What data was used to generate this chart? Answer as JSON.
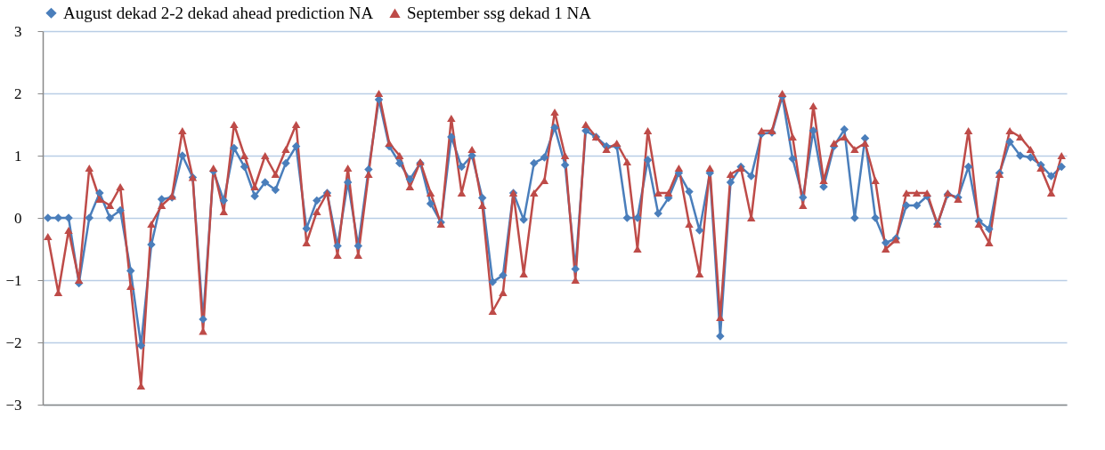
{
  "chart_data": {
    "type": "line",
    "categories": [
      null,
      null,
      null,
      null,
      null,
      null,
      null,
      null,
      null,
      null,
      null,
      null,
      null,
      null,
      null,
      null,
      null,
      null,
      null,
      null,
      null,
      null,
      null,
      null,
      null,
      null,
      null,
      null,
      null,
      null,
      null,
      null,
      null,
      null,
      null,
      null,
      null,
      null,
      null,
      null,
      null,
      null,
      null,
      null,
      null,
      null,
      null,
      null,
      null,
      null,
      null,
      null,
      null,
      null,
      null,
      null,
      null,
      null,
      null,
      null,
      null,
      null,
      null,
      null,
      null,
      null,
      null,
      null,
      null,
      null,
      null,
      null,
      null,
      null,
      null,
      null,
      null,
      null,
      null,
      null,
      null,
      null,
      null,
      null,
      null,
      null,
      null,
      null,
      null,
      null,
      null,
      null,
      null,
      null,
      null,
      null,
      null,
      null,
      null
    ],
    "series": [
      {
        "name": "August dekad 2-2 dekad ahead prediction NA",
        "color": "#4a7ebb",
        "marker": "diamond",
        "values": [
          0,
          0,
          0,
          -1.05,
          0,
          0.4,
          0,
          0.12,
          -0.85,
          -2.05,
          -0.43,
          0.3,
          0.33,
          1.0,
          0.65,
          -1.63,
          0.75,
          0.28,
          1.12,
          0.82,
          0.35,
          0.57,
          0.45,
          0.88,
          1.15,
          -0.17,
          0.28,
          0.4,
          -0.45,
          0.57,
          -0.45,
          0.78,
          1.9,
          1.15,
          0.88,
          0.62,
          0.88,
          0.23,
          -0.07,
          1.3,
          0.82,
          1.0,
          0.32,
          -1.03,
          -0.92,
          0.4,
          -0.03,
          0.88,
          0.97,
          1.45,
          0.85,
          -0.82,
          1.4,
          1.3,
          1.15,
          1.15,
          0,
          0,
          0.93,
          0.07,
          0.32,
          0.72,
          0.42,
          -0.2,
          0.72,
          -1.9,
          0.57,
          0.82,
          0.67,
          1.35,
          1.37,
          1.95,
          0.95,
          0.33,
          1.4,
          0.5,
          1.15,
          1.42,
          0,
          1.28,
          0,
          -0.4,
          -0.33,
          0.2,
          0.2,
          0.35,
          -0.1,
          0.38,
          0.33,
          0.82,
          -0.05,
          -0.18,
          0.72,
          1.22,
          1.0,
          0.97,
          0.85,
          0.67,
          0.82
        ]
      },
      {
        "name": "September ssg dekad 1 NA",
        "color": "#be4b48",
        "marker": "triangle",
        "values": [
          -0.3,
          -1.2,
          -0.2,
          -1.0,
          0.8,
          0.3,
          0.2,
          0.5,
          -1.1,
          -2.7,
          -0.1,
          0.2,
          0.35,
          1.4,
          0.65,
          -1.82,
          0.8,
          0.1,
          1.5,
          1.0,
          0.5,
          1.0,
          0.7,
          1.1,
          1.5,
          -0.4,
          0.1,
          0.4,
          -0.6,
          0.8,
          -0.6,
          0.7,
          2.0,
          1.2,
          1.0,
          0.5,
          0.9,
          0.4,
          -0.1,
          1.6,
          0.4,
          1.1,
          0.2,
          -1.5,
          -1.2,
          0.4,
          -0.9,
          0.4,
          0.6,
          1.7,
          1.0,
          -1.0,
          1.5,
          1.3,
          1.1,
          1.2,
          0.9,
          -0.5,
          1.4,
          0.4,
          0.4,
          0.8,
          -0.1,
          -0.9,
          0.8,
          -1.6,
          0.7,
          0.8,
          0.0,
          1.4,
          1.4,
          2.0,
          1.3,
          0.2,
          1.8,
          0.6,
          1.2,
          1.3,
          1.1,
          1.2,
          0.6,
          -0.5,
          -0.35,
          0.4,
          0.4,
          0.4,
          -0.1,
          0.4,
          0.3,
          1.4,
          -0.1,
          -0.4,
          0.7,
          1.4,
          1.3,
          1.1,
          0.8,
          0.4,
          1.0
        ]
      }
    ],
    "ylim": [
      -3,
      3
    ],
    "yticks": [
      -3,
      -2,
      -1,
      0,
      1,
      2,
      3
    ],
    "grid": "y",
    "legend": "top",
    "tick_labels": "y",
    "line_style": "solid"
  }
}
